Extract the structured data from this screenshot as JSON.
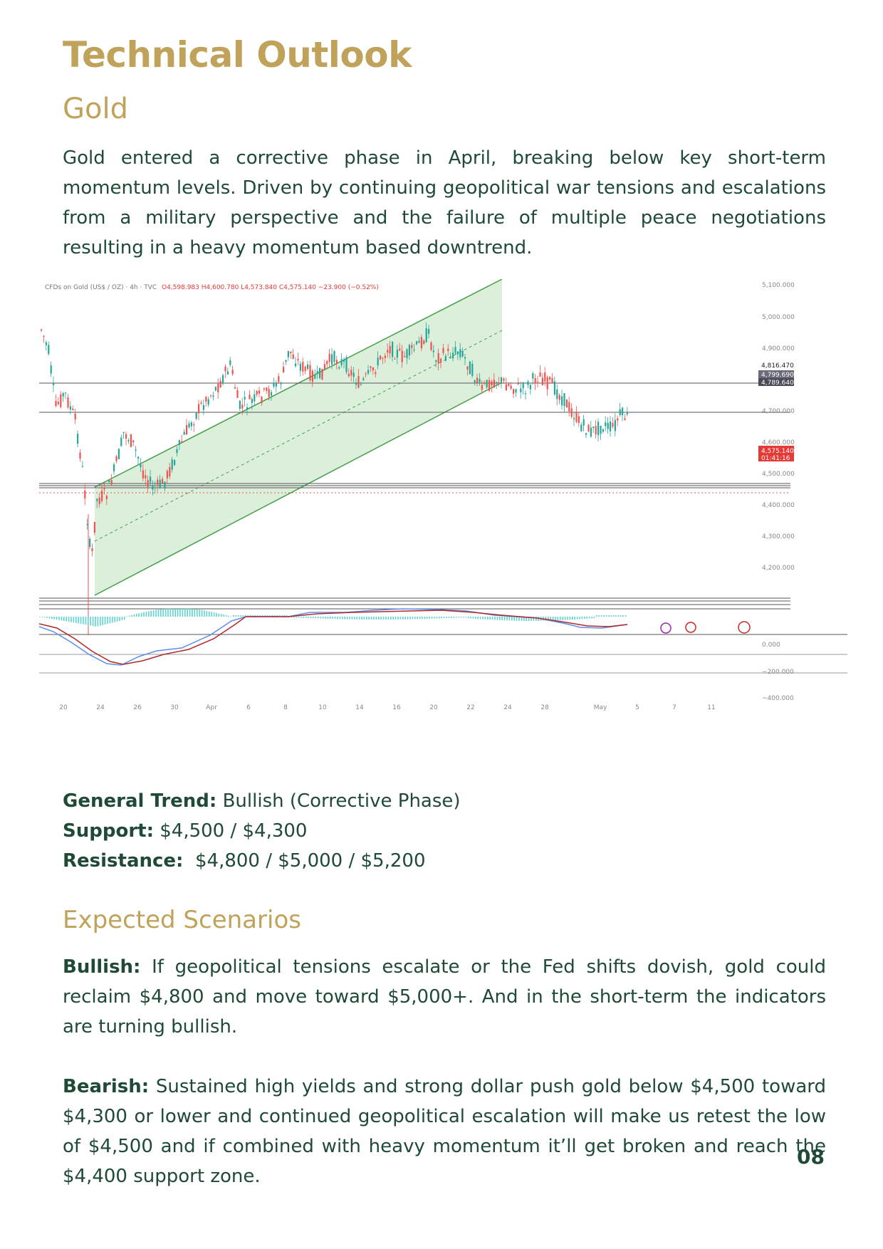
{
  "title": "Technical Outlook",
  "subtitle": "Gold",
  "intro": "Gold entered a corrective phase in April, breaking below key short-term momentum levels. Driven by continuing geopolitical war tensions and escalations from a military perspective and the failure of multiple peace negotiations resulting in a heavy momentum based  downtrend.",
  "chart": {
    "header": "CFDs on Gold (US$ / OZ) · 4h · TVC",
    "ohlc": "O4,598.983  H4,600.780  L4,573.840  C4,575.140  −23.900 (−0.52%)",
    "price_labels": [
      "5,100.000",
      "5,000.000",
      "4,900.000",
      "4,700.000",
      "4,600.000",
      "4,500.000",
      "4,400.000",
      "4,300.000",
      "4,200.000"
    ],
    "tag_upper": "4,816.470",
    "tag_mid1": "4,799.690",
    "tag_mid2": "4,789.640",
    "tag_current": "4,575.140",
    "tag_timer": "01:41:16",
    "osc_labels": [
      "0.000",
      "−200.000",
      "−400.000"
    ],
    "date_labels": [
      "20",
      "24",
      "26",
      "30",
      "Apr",
      "6",
      "8",
      "10",
      "14",
      "16",
      "20",
      "22",
      "24",
      "28",
      "May",
      "5",
      "7",
      "11"
    ],
    "colors": {
      "up": "#26a69a",
      "down": "#ef5350",
      "channel": "#4caf50",
      "channel_fill": "#c8e6c9",
      "macd": "#5b8def",
      "signal": "#b02a2a"
    }
  },
  "trend": {
    "label": "General Trend:",
    "value": " Bullish (Corrective Phase)"
  },
  "support": {
    "label": "Support:",
    "value": " $4,500 / $4,300"
  },
  "resistance": {
    "label": "Resistance:",
    "value": "  $4,800 / $5,000 / $5,200"
  },
  "scenarios_title": "Expected Scenarios",
  "bullish": {
    "label": "Bullish:",
    "text": " If geopolitical tensions escalate or the Fed shifts dovish, gold could reclaim $4,800 and move toward $5,000+. And in the short-term the indicators are turning bullish."
  },
  "bearish": {
    "label": "Bearish:",
    "text": " Sustained high yields and strong dollar push gold below $4,500 toward $4,300 or lower and continued geopolitical escalation will make us retest the low of $4,500 and if combined with heavy momentum it’ll get broken and reach the $4,400 support zone."
  },
  "page_number": "08"
}
